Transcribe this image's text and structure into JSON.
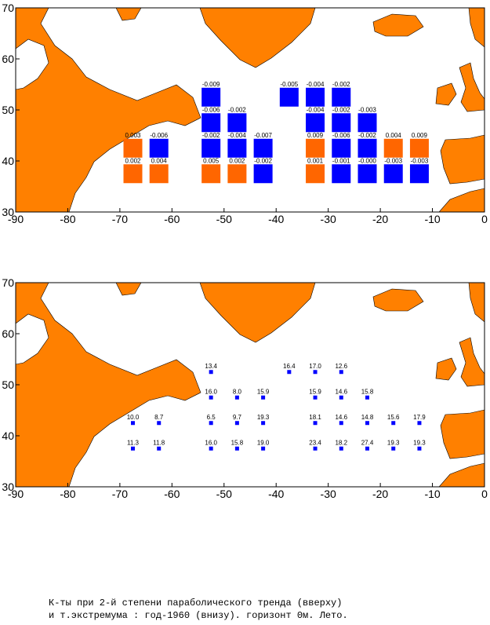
{
  "chart_data": [
    {
      "type": "map",
      "x": [
        -52.5,
        -37.5,
        -32.5,
        -27.5,
        -52.5,
        -47.5,
        -32.5,
        -27.5,
        -22.5,
        -67.5,
        -62.5,
        -52.5,
        -47.5,
        -42.5,
        -32.5,
        -27.5,
        -22.5,
        -17.5,
        -12.5,
        -67.5,
        -62.5,
        -52.5,
        -47.5,
        -42.5,
        -32.5,
        -27.5,
        -22.5,
        -17.5,
        -12.5
      ],
      "y": [
        52.5,
        52.5,
        52.5,
        52.5,
        47.5,
        47.5,
        47.5,
        47.5,
        47.5,
        42.5,
        42.5,
        42.5,
        42.5,
        42.5,
        42.5,
        42.5,
        42.5,
        42.5,
        42.5,
        37.5,
        37.5,
        37.5,
        37.5,
        37.5,
        37.5,
        37.5,
        37.5,
        37.5,
        37.5
      ],
      "values": [
        -0.009,
        -0.005,
        -0.004,
        -0.002,
        -0.006,
        -0.002,
        -0.004,
        -0.002,
        -0.003,
        0.003,
        -0.006,
        -0.002,
        -0.004,
        -0.007,
        0.009,
        -0.006,
        -0.002,
        0.004,
        0.009,
        0.002,
        0.004,
        0.005,
        0.002,
        -0.002,
        0.001,
        -0.001,
        0,
        -0.003,
        -0.003
      ],
      "value_labels": [
        "-0.009",
        "-0.005",
        "-0.004",
        "-0.002",
        "-0.006",
        "-0.002",
        "-0.004",
        "-0.002",
        "-0.003",
        "0.003",
        "-0.006",
        "-0.002",
        "-0.004",
        "-0.007",
        "0.009",
        "-0.006",
        "-0.002",
        "0.004",
        "0.009",
        "0.002",
        "0.004",
        "0.005",
        "0.002",
        "-0.002",
        "0.001",
        "-0.001",
        "-0.000",
        "-0.003",
        "-0.003"
      ],
      "colors": [
        "#0000ff",
        "#0000ff",
        "#0000ff",
        "#0000ff",
        "#0000ff",
        "#0000ff",
        "#0000ff",
        "#0000ff",
        "#0000ff",
        "#ff6600",
        "#0000ff",
        "#0000ff",
        "#0000ff",
        "#0000ff",
        "#ff6600",
        "#0000ff",
        "#0000ff",
        "#ff6600",
        "#ff6600",
        "#ff6600",
        "#ff6600",
        "#ff6600",
        "#ff6600",
        "#0000ff",
        "#ff6600",
        "#0000ff",
        "#0000ff",
        "#0000ff",
        "#0000ff"
      ],
      "xlim": [
        -90,
        0
      ],
      "ylim": [
        30,
        70
      ],
      "xticks": [
        -90,
        -80,
        -70,
        -60,
        -50,
        -40,
        -30,
        -20,
        -10,
        0
      ],
      "yticks": [
        30,
        40,
        50,
        60,
        70
      ]
    },
    {
      "type": "map",
      "x": [
        -52.5,
        -37.5,
        -32.5,
        -27.5,
        -52.5,
        -47.5,
        -42.5,
        -32.5,
        -27.5,
        -22.5,
        -67.5,
        -62.5,
        -52.5,
        -47.5,
        -42.5,
        -32.5,
        -27.5,
        -22.5,
        -17.5,
        -12.5,
        -67.5,
        -62.5,
        -52.5,
        -47.5,
        -42.5,
        -32.5,
        -27.5,
        -22.5,
        -17.5,
        -12.5
      ],
      "y": [
        52.5,
        52.5,
        52.5,
        52.5,
        47.5,
        47.5,
        47.5,
        47.5,
        47.5,
        47.5,
        42.5,
        42.5,
        42.5,
        42.5,
        42.5,
        42.5,
        42.5,
        42.5,
        42.5,
        42.5,
        37.5,
        37.5,
        37.5,
        37.5,
        37.5,
        37.5,
        37.5,
        37.5,
        37.5,
        37.5
      ],
      "values": [
        13.4,
        16.4,
        17,
        12.6,
        16,
        8,
        15.9,
        15.9,
        14.6,
        15.8,
        10,
        8.7,
        6.5,
        9.7,
        19.3,
        18.1,
        14.6,
        14.8,
        15.6,
        17.9,
        11.3,
        11.8,
        16,
        15.8,
        19,
        23.4,
        18.2,
        27.4,
        19.3,
        19.3
      ],
      "value_labels": [
        "13.4",
        "16.4",
        "17.0",
        "12.6",
        "16.0",
        "8.0",
        "15.9",
        "15.9",
        "14.6",
        "15.8",
        "10.0",
        "8.7",
        "6.5",
        "9.7",
        "19.3",
        "18.1",
        "14.6",
        "14.8",
        "15.6",
        "17.9",
        "11.3",
        "11.8",
        "16.0",
        "15.8",
        "19.0",
        "23.4",
        "18.2",
        "27.4",
        "19.3",
        "19.3"
      ],
      "color": "#0000ff",
      "xlim": [
        -90,
        0
      ],
      "ylim": [
        30,
        70
      ],
      "xticks": [
        -90,
        -80,
        -70,
        -60,
        -50,
        -40,
        -30,
        -20,
        -10,
        0
      ],
      "yticks": [
        30,
        40,
        50,
        60,
        70
      ]
    }
  ],
  "caption": [
    "К-ты при 2-й степени параболического тренда (вверху)",
    "и т.экстремума : год-1960 (внизу).  горизонт 0м. Лето."
  ]
}
